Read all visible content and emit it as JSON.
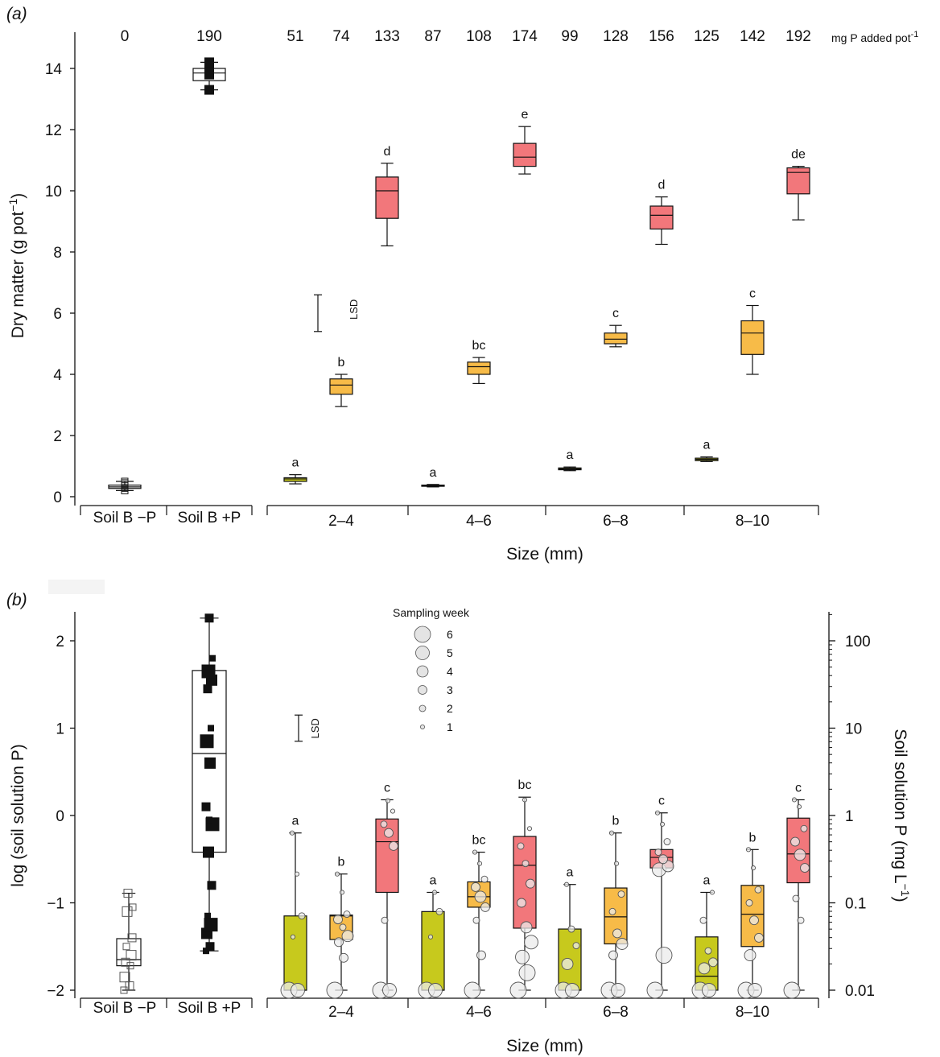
{
  "colors": {
    "control_box": "#ffffff",
    "low_p": "#c7c91d",
    "mid_p": "#f7bb48",
    "high_p": "#f2777b",
    "black": "#111111"
  },
  "chart_data": [
    {
      "id": "a",
      "type": "boxplot",
      "panel_label": "(a)",
      "ylabel": "Dry matter (g pot",
      "ylabel_sup": "−1",
      "ylabel_tail": ")",
      "xlabel": "Size (mm)",
      "ylim": [
        0,
        15
      ],
      "yticks": [
        0,
        2,
        4,
        6,
        8,
        10,
        12,
        14
      ],
      "y_tick_labels": [
        "0",
        "2",
        "4",
        "6",
        "8",
        "10",
        "12",
        "14"
      ],
      "group_labels": [
        "Soil B −P",
        "Soil B +P",
        "2–4",
        "4–6",
        "6–8",
        "8–10"
      ],
      "p_added_labels": [
        "0",
        "190",
        "51",
        "74",
        "133",
        "87",
        "108",
        "174",
        "99",
        "128",
        "156",
        "125",
        "142",
        "192"
      ],
      "p_added_unit": "mg P added pot",
      "p_added_unit_sup": "-1",
      "lsd": {
        "low": 5.4,
        "high": 6.6,
        "label": "LSD"
      },
      "boxes": [
        {
          "group": "Soil B −P",
          "color": "control",
          "min": 0.2,
          "q1": 0.27,
          "median": 0.32,
          "q3": 0.38,
          "max": 0.5,
          "label": ""
        },
        {
          "group": "Soil B +P",
          "color": "control",
          "min": 13.3,
          "q1": 13.6,
          "median": 13.85,
          "q3": 14.0,
          "max": 14.2,
          "label": ""
        },
        {
          "group": "2–4",
          "color": "low",
          "min": 0.42,
          "q1": 0.5,
          "median": 0.58,
          "q3": 0.62,
          "max": 0.72,
          "label": "a"
        },
        {
          "group": "2–4",
          "color": "mid",
          "min": 2.95,
          "q1": 3.35,
          "median": 3.65,
          "q3": 3.85,
          "max": 4.0,
          "label": "b"
        },
        {
          "group": "2–4",
          "color": "high",
          "min": 8.2,
          "q1": 9.1,
          "median": 10.0,
          "q3": 10.45,
          "max": 10.9,
          "label": "d"
        },
        {
          "group": "4–6",
          "color": "low",
          "min": 0.32,
          "q1": 0.34,
          "median": 0.36,
          "q3": 0.38,
          "max": 0.4,
          "label": "a"
        },
        {
          "group": "4–6",
          "color": "mid",
          "min": 3.7,
          "q1": 4.0,
          "median": 4.25,
          "q3": 4.4,
          "max": 4.55,
          "label": "bc"
        },
        {
          "group": "4–6",
          "color": "high",
          "min": 10.55,
          "q1": 10.8,
          "median": 11.1,
          "q3": 11.55,
          "max": 12.1,
          "label": "e"
        },
        {
          "group": "6–8",
          "color": "low",
          "min": 0.85,
          "q1": 0.88,
          "median": 0.91,
          "q3": 0.94,
          "max": 0.97,
          "label": "a"
        },
        {
          "group": "6–8",
          "color": "mid",
          "min": 4.9,
          "q1": 5.0,
          "median": 5.15,
          "q3": 5.35,
          "max": 5.6,
          "label": "c"
        },
        {
          "group": "6–8",
          "color": "high",
          "min": 8.25,
          "q1": 8.75,
          "median": 9.2,
          "q3": 9.5,
          "max": 9.8,
          "label": "d"
        },
        {
          "group": "8–10",
          "color": "low",
          "min": 1.15,
          "q1": 1.18,
          "median": 1.22,
          "q3": 1.26,
          "max": 1.3,
          "label": "a"
        },
        {
          "group": "8–10",
          "color": "mid",
          "min": 4.0,
          "q1": 4.65,
          "median": 5.35,
          "q3": 5.75,
          "max": 6.25,
          "label": "c"
        },
        {
          "group": "8–10",
          "color": "high",
          "min": 9.05,
          "q1": 9.9,
          "median": 10.6,
          "q3": 10.75,
          "max": 10.8,
          "label": "de"
        }
      ],
      "points": {
        "Soil B −P": [
          0.2,
          0.28,
          0.35,
          0.45,
          0.5
        ],
        "Soil B +P": [
          13.3,
          13.8,
          14.05,
          14.2
        ]
      }
    },
    {
      "id": "b",
      "type": "boxplot",
      "panel_label": "(b)",
      "ylabel": "log (soil solution P)",
      "ylabel_right": "Soil solution P (mg L",
      "ylabel_right_sup": "−1",
      "ylabel_right_tail": ")",
      "xlabel": "Size (mm)",
      "ylim": [
        -2.0,
        2.4
      ],
      "yticks": [
        -2,
        -1,
        0,
        1,
        2
      ],
      "y_tick_labels": [
        "−2",
        "−1",
        "0",
        "1",
        "2"
      ],
      "right_ticks": [
        0.01,
        0.1,
        1,
        10,
        100
      ],
      "right_tick_labels": [
        "0.01",
        "0.1",
        "1",
        "10",
        "100"
      ],
      "group_labels": [
        "Soil B −P",
        "Soil B +P",
        "2–4",
        "4–6",
        "6–8",
        "8–10"
      ],
      "lsd": {
        "low": 0.85,
        "high": 1.15,
        "label": "LSD"
      },
      "legend": {
        "title": "Sampling week",
        "entries": [
          "6",
          "5",
          "4",
          "3",
          "2",
          "1"
        ]
      },
      "boxes": [
        {
          "group": "Soil B −P",
          "color": "control",
          "min": -2.0,
          "q1": -1.72,
          "median": -1.65,
          "q3": -1.41,
          "max": -0.89,
          "label": ""
        },
        {
          "group": "Soil B +P",
          "color": "control",
          "min": -1.55,
          "q1": -0.42,
          "median": 0.71,
          "q3": 1.66,
          "max": 2.26,
          "label": ""
        },
        {
          "group": "2–4",
          "color": "low",
          "min": -2.0,
          "q1": -2.0,
          "median": -2.0,
          "q3": -1.15,
          "max": -0.2,
          "label": "a"
        },
        {
          "group": "2–4",
          "color": "mid",
          "min": -2.0,
          "q1": -1.42,
          "median": -1.15,
          "q3": -1.14,
          "max": -0.67,
          "label": "b"
        },
        {
          "group": "2–4",
          "color": "high",
          "min": -2.0,
          "q1": -0.88,
          "median": -0.3,
          "q3": -0.04,
          "max": 0.18,
          "label": "c"
        },
        {
          "group": "4–6",
          "color": "low",
          "min": -2.0,
          "q1": -2.0,
          "median": -2.0,
          "q3": -1.1,
          "max": -0.88,
          "label": "a"
        },
        {
          "group": "4–6",
          "color": "mid",
          "min": -2.0,
          "q1": -1.05,
          "median": -0.93,
          "q3": -0.76,
          "max": -0.42,
          "label": "bc"
        },
        {
          "group": "4–6",
          "color": "high",
          "min": -2.0,
          "q1": -1.29,
          "median": -0.57,
          "q3": -0.24,
          "max": 0.21,
          "label": "bc"
        },
        {
          "group": "6–8",
          "color": "low",
          "min": -2.0,
          "q1": -2.0,
          "median": -2.0,
          "q3": -1.3,
          "max": -0.79,
          "label": "a"
        },
        {
          "group": "6–8",
          "color": "mid",
          "min": -2.0,
          "q1": -1.47,
          "median": -1.16,
          "q3": -0.83,
          "max": -0.2,
          "label": "b"
        },
        {
          "group": "6–8",
          "color": "high",
          "min": -2.0,
          "q1": -0.6,
          "median": -0.48,
          "q3": -0.39,
          "max": 0.03,
          "label": "c"
        },
        {
          "group": "8–10",
          "color": "low",
          "min": -2.0,
          "q1": -2.0,
          "median": -1.84,
          "q3": -1.39,
          "max": -0.88,
          "label": "a"
        },
        {
          "group": "8–10",
          "color": "mid",
          "min": -2.0,
          "q1": -1.5,
          "median": -1.13,
          "q3": -0.8,
          "max": -0.39,
          "label": "b"
        },
        {
          "group": "8–10",
          "color": "high",
          "min": -2.0,
          "q1": -0.77,
          "median": -0.44,
          "q3": -0.03,
          "max": 0.18,
          "label": "c"
        }
      ],
      "points": [
        [
          [
            -2.0,
            6
          ],
          [
            -2.0,
            5
          ],
          [
            -1.39,
            1
          ],
          [
            -1.15,
            2
          ],
          [
            -0.67,
            1
          ],
          [
            -0.2,
            1
          ]
        ],
        [
          [
            -2.0,
            6
          ],
          [
            -1.63,
            3
          ],
          [
            -1.45,
            3
          ],
          [
            -1.38,
            4
          ],
          [
            -1.28,
            2
          ],
          [
            -1.19,
            3
          ],
          [
            -1.13,
            2
          ],
          [
            -0.88,
            1
          ],
          [
            -0.67,
            1
          ]
        ],
        [
          [
            -2.0,
            6
          ],
          [
            -2.0,
            5
          ],
          [
            -1.2,
            2
          ],
          [
            -0.35,
            3
          ],
          [
            -0.2,
            3
          ],
          [
            -0.1,
            2
          ],
          [
            0.05,
            1
          ],
          [
            0.17,
            1
          ]
        ],
        [
          [
            -2.0,
            6
          ],
          [
            -2.0,
            5
          ],
          [
            -1.39,
            1
          ],
          [
            -1.1,
            2
          ],
          [
            -0.88,
            1
          ]
        ],
        [
          [
            -2.0,
            6
          ],
          [
            -1.6,
            3
          ],
          [
            -1.2,
            2
          ],
          [
            -1.05,
            3
          ],
          [
            -0.93,
            4
          ],
          [
            -0.82,
            3
          ],
          [
            -0.73,
            2
          ],
          [
            -0.55,
            1
          ],
          [
            -0.42,
            1
          ]
        ],
        [
          [
            -2.0,
            6
          ],
          [
            -1.8,
            6
          ],
          [
            -1.62,
            5
          ],
          [
            -1.45,
            5
          ],
          [
            -1.28,
            4
          ],
          [
            -1.0,
            3
          ],
          [
            -0.78,
            3
          ],
          [
            -0.55,
            2
          ],
          [
            -0.35,
            2
          ],
          [
            -0.15,
            1
          ],
          [
            0.18,
            1
          ]
        ],
        [
          [
            -2.0,
            6
          ],
          [
            -2.0,
            5
          ],
          [
            -1.7,
            4
          ],
          [
            -1.49,
            2
          ],
          [
            -1.3,
            2
          ],
          [
            -0.79,
            1
          ]
        ],
        [
          [
            -2.0,
            6
          ],
          [
            -2.0,
            5
          ],
          [
            -1.6,
            3
          ],
          [
            -1.47,
            4
          ],
          [
            -1.35,
            3
          ],
          [
            -1.1,
            2
          ],
          [
            -0.9,
            2
          ],
          [
            -0.55,
            1
          ],
          [
            -0.2,
            1
          ]
        ],
        [
          [
            -2.0,
            6
          ],
          [
            -1.6,
            6
          ],
          [
            -0.62,
            5
          ],
          [
            -0.58,
            4
          ],
          [
            -0.5,
            3
          ],
          [
            -0.42,
            2
          ],
          [
            -0.3,
            2
          ],
          [
            -0.1,
            1
          ],
          [
            0.03,
            1
          ]
        ],
        [
          [
            -2.0,
            6
          ],
          [
            -2.0,
            5
          ],
          [
            -1.75,
            4
          ],
          [
            -1.68,
            3
          ],
          [
            -1.55,
            2
          ],
          [
            -1.2,
            2
          ],
          [
            -0.88,
            1
          ]
        ],
        [
          [
            -2.0,
            6
          ],
          [
            -2.0,
            5
          ],
          [
            -1.6,
            4
          ],
          [
            -1.4,
            3
          ],
          [
            -1.2,
            3
          ],
          [
            -1.0,
            2
          ],
          [
            -0.85,
            2
          ],
          [
            -0.6,
            1
          ],
          [
            -0.39,
            1
          ]
        ],
        [
          [
            -2.0,
            6
          ],
          [
            -1.2,
            2
          ],
          [
            -0.95,
            2
          ],
          [
            -0.6,
            3
          ],
          [
            -0.45,
            4
          ],
          [
            -0.3,
            3
          ],
          [
            -0.15,
            2
          ],
          [
            0.1,
            1
          ],
          [
            0.18,
            1
          ]
        ]
      ],
      "control_points": {
        "Soil B −P": [
          -2.0,
          -1.95,
          -1.85,
          -1.72,
          -1.68,
          -1.6,
          -1.5,
          -1.4,
          -1.1,
          -1.05,
          -0.89
        ],
        "Soil B +P": [
          -1.55,
          -1.5,
          -1.35,
          -1.25,
          -1.15,
          -0.8,
          -0.42,
          -0.1,
          -0.05,
          0.1,
          0.6,
          0.85,
          1.0,
          1.45,
          1.55,
          1.65,
          1.8,
          2.26
        ]
      }
    }
  ]
}
